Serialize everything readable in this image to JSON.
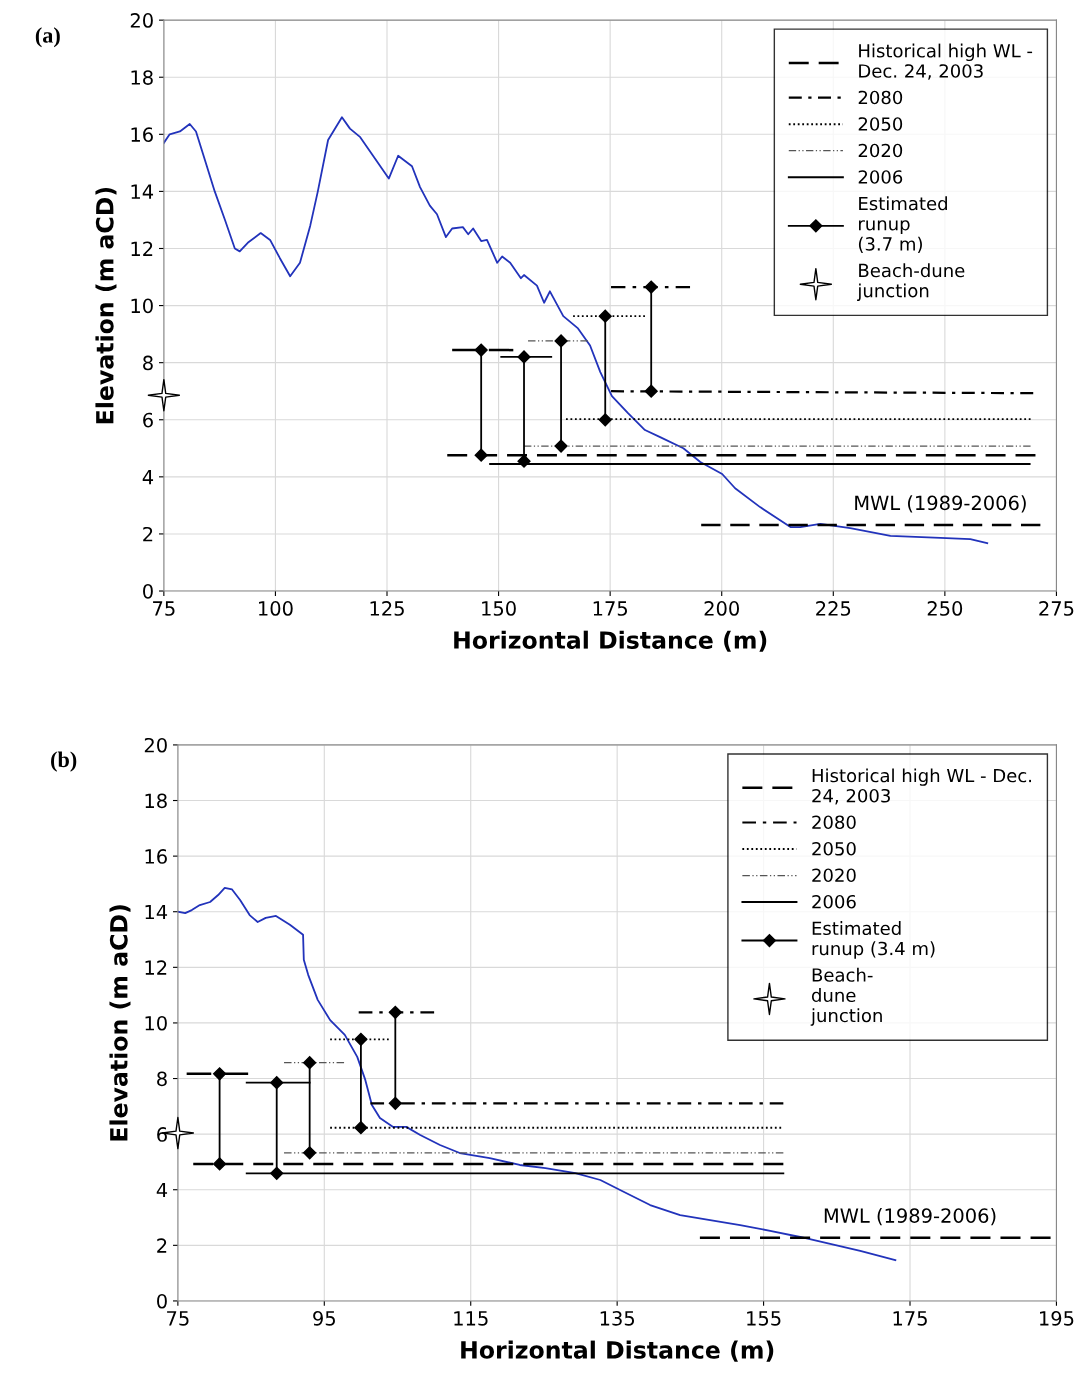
{
  "chart_data": [
    {
      "type": "line",
      "xlabel": "Horizontal Distance (m)",
      "ylabel": "Elevation (m aCD)",
      "xlim": [
        75,
        275
      ],
      "xticks": [
        75,
        100,
        125,
        150,
        175,
        200,
        225,
        250,
        275
      ],
      "ylim": [
        0,
        20
      ],
      "yticks": [
        0,
        2,
        4,
        6,
        8,
        10,
        12,
        14,
        16,
        18,
        20
      ],
      "grid": true,
      "legend": "top right",
      "annotations": [
        "(a)",
        {
          "text": "MWL (1989-2006)",
          "x": 249,
          "y": 2.31
        }
      ],
      "series": [
        {
          "color": "#2233bb",
          "line_style": "solid",
          "x": [
            75,
            76.3,
            78.6,
            80.8,
            82.2,
            84.2,
            86.4,
            88.7,
            90.9,
            92.0,
            93.8,
            96.7,
            98.8,
            101,
            103.3,
            105.5,
            107.8,
            109.5,
            111.8,
            114.9,
            116.7,
            119,
            122.3,
            125.4,
            127.5,
            130.6,
            132.4,
            134.6,
            136.2,
            138.2,
            139.6,
            142,
            143.2,
            144.3,
            146.1,
            147.4,
            149.7,
            150.8,
            152.6,
            155,
            155.7,
            158.6,
            160.2,
            161.5,
            164.5,
            167.8,
            170.5,
            172.8,
            175.4,
            179,
            182.8,
            186.2,
            191.4,
            195.2,
            200.1,
            203,
            208.6,
            215.4,
            217.6,
            222.1,
            228.8,
            237.8,
            249,
            255.7,
            259.5
          ],
          "values": [
            15.7,
            16.0,
            16.1,
            16.36,
            16.1,
            15.1,
            14.0,
            13.0,
            12.0,
            11.9,
            12.2,
            12.54,
            12.3,
            11.66,
            11.03,
            11.5,
            12.8,
            14.0,
            15.8,
            16.6,
            16.2,
            15.9,
            15.15,
            14.45,
            15.25,
            14.88,
            14.15,
            13.5,
            13.2,
            12.4,
            12.7,
            12.75,
            12.5,
            12.7,
            12.26,
            12.3,
            11.5,
            11.72,
            11.5,
            10.96,
            11.07,
            10.7,
            10.1,
            10.5,
            9.63,
            9.2,
            8.6,
            7.67,
            6.83,
            6.23,
            5.64,
            5.39,
            5.0,
            4.52,
            4.1,
            3.6,
            2.94,
            2.24,
            2.24,
            2.35,
            2.2,
            1.93,
            1.86,
            1.82,
            1.68
          ]
        },
        {
          "type": "line",
          "name": "Historical high WL -\nDec. 24, 2003",
          "color": "#000000",
          "line_style": "dashed",
          "x": [
            138.5,
            270.3
          ],
          "values": [
            4.76,
            4.76
          ]
        },
        {
          "type": "line",
          "color": "#000000",
          "line_style": "dashed",
          "x": [
            139.6,
            153.3
          ],
          "values": [
            8.44,
            8.44
          ]
        },
        {
          "type": "line",
          "name": "2080",
          "color": "#000000",
          "line_style": "dashdot",
          "x": [
            175.2,
            269.8
          ],
          "values": [
            7.0,
            6.93
          ]
        },
        {
          "type": "line",
          "color": "#000000",
          "line_style": "dashdot",
          "x": [
            175.2,
            192.9
          ],
          "values": [
            10.65,
            10.65
          ]
        },
        {
          "type": "line",
          "name": "2050",
          "color": "#000000",
          "line_style": "dotted",
          "x": [
            165.1,
            269.2
          ],
          "values": [
            6.02,
            6.02
          ]
        },
        {
          "type": "line",
          "color": "#000000",
          "line_style": "dotted",
          "x": [
            166.7,
            182.8
          ],
          "values": [
            9.63,
            9.63
          ]
        },
        {
          "type": "line",
          "name": "2020",
          "color": "#555555",
          "line_style": "dashdotdot",
          "x": [
            155.7,
            269.2
          ],
          "values": [
            5.08,
            5.08
          ]
        },
        {
          "type": "line",
          "color": "#555555",
          "line_style": "dashdotdot",
          "x": [
            156.6,
            170
          ],
          "values": [
            8.76,
            8.76
          ]
        },
        {
          "type": "line",
          "name": "2006",
          "color": "#000000",
          "line_style": "solid",
          "x": [
            148.1,
            269.0
          ],
          "values": [
            4.45,
            4.45
          ]
        },
        {
          "type": "line",
          "color": "#000000",
          "line_style": "solid",
          "x": [
            150.6,
            161.8
          ],
          "values": [
            8.2,
            8.2
          ]
        },
        {
          "type": "line",
          "color": "#000000",
          "line_style": "dashed",
          "x": [
            195.4,
            271.4
          ],
          "values": [
            2.31,
            2.31
          ]
        },
        {
          "type": "line",
          "name": "Estimated\nrunup\n(3.7 m)",
          "color": "#000000",
          "line_style": "solid",
          "marker": "diamond",
          "x": [
            146.1,
            146.1
          ],
          "values": [
            4.76,
            8.44
          ]
        },
        {
          "type": "line",
          "color": "#000000",
          "line_style": "solid",
          "marker": "diamond",
          "x": [
            155.7,
            155.7
          ],
          "values": [
            4.55,
            8.2
          ]
        },
        {
          "type": "line",
          "color": "#000000",
          "line_style": "solid",
          "marker": "diamond",
          "x": [
            164.0,
            164.0
          ],
          "values": [
            5.08,
            8.76
          ]
        },
        {
          "type": "line",
          "color": "#000000",
          "line_style": "solid",
          "marker": "diamond",
          "x": [
            173.9,
            173.9
          ],
          "values": [
            6.0,
            9.63
          ]
        },
        {
          "type": "line",
          "color": "#000000",
          "line_style": "solid",
          "marker": "diamond",
          "x": [
            184.2,
            184.2
          ],
          "values": [
            7.0,
            10.65
          ]
        },
        {
          "type": "scatter",
          "name": "Beach-dune\njunction",
          "color": "#ffffff",
          "marker": "star",
          "x": [
            75
          ],
          "values": [
            6.86
          ]
        }
      ]
    },
    {
      "type": "line",
      "xlabel": "Horizontal Distance (m)",
      "ylabel": "Elevation (m aCD)",
      "xlim": [
        75,
        195
      ],
      "xticks": [
        75,
        95,
        115,
        135,
        155,
        175,
        195
      ],
      "ylim": [
        0,
        20
      ],
      "yticks": [
        0,
        2,
        4,
        6,
        8,
        10,
        12,
        14,
        16,
        18,
        20
      ],
      "grid": true,
      "legend": "top right",
      "annotations": [
        "(b)",
        {
          "text": "MWL (1989-2006)",
          "x": 175,
          "y": 2.27
        }
      ],
      "series": [
        {
          "color": "#2233bb",
          "line_style": "solid",
          "x": [
            75,
            76,
            76.9,
            78,
            79.4,
            80.5,
            81.4,
            82.4,
            83.5,
            84.8,
            85.9,
            87,
            88.4,
            90.3,
            92.1,
            92.2,
            92.8,
            94.1,
            95.8,
            97.8,
            99.5,
            100.6,
            101.5,
            102.6,
            104.4,
            106.2,
            108.1,
            110.8,
            113.5,
            117.6,
            121.7,
            125.2,
            129.3,
            132.7,
            135.4,
            139.5,
            143.6,
            147.7,
            151.8,
            155.9,
            160,
            164.1,
            168.2,
            173
          ],
          "values": [
            14.0,
            13.95,
            14.06,
            14.24,
            14.35,
            14.6,
            14.86,
            14.8,
            14.42,
            13.88,
            13.63,
            13.78,
            13.85,
            13.53,
            13.17,
            12.27,
            11.73,
            10.83,
            10.1,
            9.57,
            8.78,
            7.95,
            7.05,
            6.58,
            6.26,
            6.26,
            5.97,
            5.61,
            5.32,
            5.14,
            4.89,
            4.78,
            4.6,
            4.35,
            3.99,
            3.45,
            3.09,
            2.91,
            2.73,
            2.52,
            2.3,
            2.05,
            1.8,
            1.47
          ]
        },
        {
          "type": "line",
          "name": "Historical high WL - Dec.\n24, 2003",
          "color": "#000000",
          "line_style": "dashed",
          "x": [
            77.1,
            157.7
          ],
          "values": [
            4.93,
            4.93
          ]
        },
        {
          "type": "line",
          "color": "#000000",
          "line_style": "dashed",
          "x": [
            76.2,
            84.6
          ],
          "values": [
            8.17,
            8.17
          ]
        },
        {
          "type": "line",
          "name": "2080",
          "color": "#000000",
          "line_style": "dashdot",
          "x": [
            101.3,
            157.7
          ],
          "values": [
            7.11,
            7.11
          ]
        },
        {
          "type": "line",
          "color": "#000000",
          "line_style": "dashdot",
          "x": [
            99.7,
            110
          ],
          "values": [
            10.38,
            10.38
          ]
        },
        {
          "type": "line",
          "name": "2050",
          "color": "#000000",
          "line_style": "dotted",
          "x": [
            95.8,
            157.4
          ],
          "values": [
            6.23,
            6.23
          ]
        },
        {
          "type": "line",
          "color": "#000000",
          "line_style": "dotted",
          "x": [
            95.8,
            103.8
          ],
          "values": [
            9.41,
            9.41
          ]
        },
        {
          "type": "line",
          "name": "2020",
          "color": "#555555",
          "line_style": "dashdotdot",
          "x": [
            89.5,
            157.7
          ],
          "values": [
            5.33,
            5.33
          ]
        },
        {
          "type": "line",
          "color": "#555555",
          "line_style": "dashdotdot",
          "x": [
            89.5,
            97.7
          ],
          "values": [
            8.57,
            8.57
          ]
        },
        {
          "type": "line",
          "name": "2006",
          "color": "#000000",
          "line_style": "solid",
          "x": [
            84.4,
            157.7
          ],
          "values": [
            4.59,
            4.59
          ]
        },
        {
          "type": "line",
          "color": "#000000",
          "line_style": "solid",
          "x": [
            84.4,
            93.0
          ],
          "values": [
            7.85,
            7.85
          ]
        },
        {
          "type": "line",
          "color": "#000000",
          "line_style": "dashed",
          "x": [
            146.3,
            194.2
          ],
          "values": [
            2.27,
            2.27
          ]
        },
        {
          "type": "line",
          "name": "Estimated\nrunup (3.4 m)",
          "color": "#000000",
          "line_style": "solid",
          "marker": "diamond",
          "x": [
            80.7,
            80.7
          ],
          "values": [
            4.93,
            8.17
          ]
        },
        {
          "type": "line",
          "color": "#000000",
          "line_style": "solid",
          "marker": "diamond",
          "x": [
            88.5,
            88.5
          ],
          "values": [
            4.59,
            7.85
          ]
        },
        {
          "type": "line",
          "color": "#000000",
          "line_style": "solid",
          "marker": "diamond",
          "x": [
            93.0,
            93.0
          ],
          "values": [
            5.33,
            8.57
          ]
        },
        {
          "type": "line",
          "color": "#000000",
          "line_style": "solid",
          "marker": "diamond",
          "x": [
            100.0,
            100.0
          ],
          "values": [
            6.23,
            9.41
          ]
        },
        {
          "type": "line",
          "color": "#000000",
          "line_style": "solid",
          "marker": "diamond",
          "x": [
            104.7,
            104.7
          ],
          "values": [
            7.11,
            10.38
          ]
        },
        {
          "type": "scatter",
          "name": "Beach-\ndune\njunction",
          "color": "#ffffff",
          "marker": "star",
          "x": [
            75
          ],
          "values": [
            6.04
          ]
        }
      ]
    }
  ]
}
